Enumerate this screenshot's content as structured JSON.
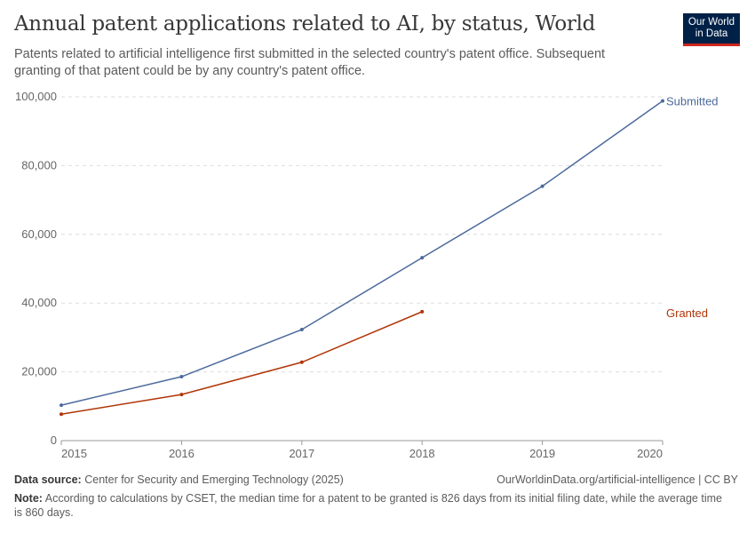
{
  "header": {
    "title": "Annual patent applications related to AI, by status, World",
    "subtitle": "Patents related to artificial intelligence first submitted in the selected country's patent office. Subsequent granting of that patent could be by any country's patent office.",
    "logo_text": "Our World in Data"
  },
  "chart_data": {
    "type": "line",
    "title": "Annual patent applications related to AI, by status, World",
    "x": [
      2015,
      2016,
      2017,
      2018,
      2019,
      2020
    ],
    "xlim": [
      2015,
      2020
    ],
    "ylim": [
      0,
      100000
    ],
    "y_ticks": [
      0,
      20000,
      40000,
      60000,
      80000,
      100000
    ],
    "y_tick_labels": [
      "0",
      "20,000",
      "40,000",
      "60,000",
      "80,000",
      "100,000"
    ],
    "x_tick_labels": [
      "2015",
      "2016",
      "2017",
      "2018",
      "2019",
      "2020"
    ],
    "grid": "horizontal dashed",
    "legend": "right, inline labels",
    "series": [
      {
        "name": "Submitted",
        "color": "#4c6a9c",
        "values": [
          10300,
          18600,
          32300,
          53200,
          74000,
          98800
        ]
      },
      {
        "name": "Granted",
        "color": "#b13507",
        "values": [
          7700,
          13400,
          22800,
          37500,
          null,
          null
        ]
      }
    ]
  },
  "footer": {
    "source_label": "Data source:",
    "source": "Center for Security and Emerging Technology (2025)",
    "url": "OurWorldinData.org/artificial-intelligence | CC BY",
    "note_label": "Note:",
    "note": "According to calculations by CSET, the median time for a patent to be granted is 826 days from its initial filing date, while the average time is 860 days."
  }
}
